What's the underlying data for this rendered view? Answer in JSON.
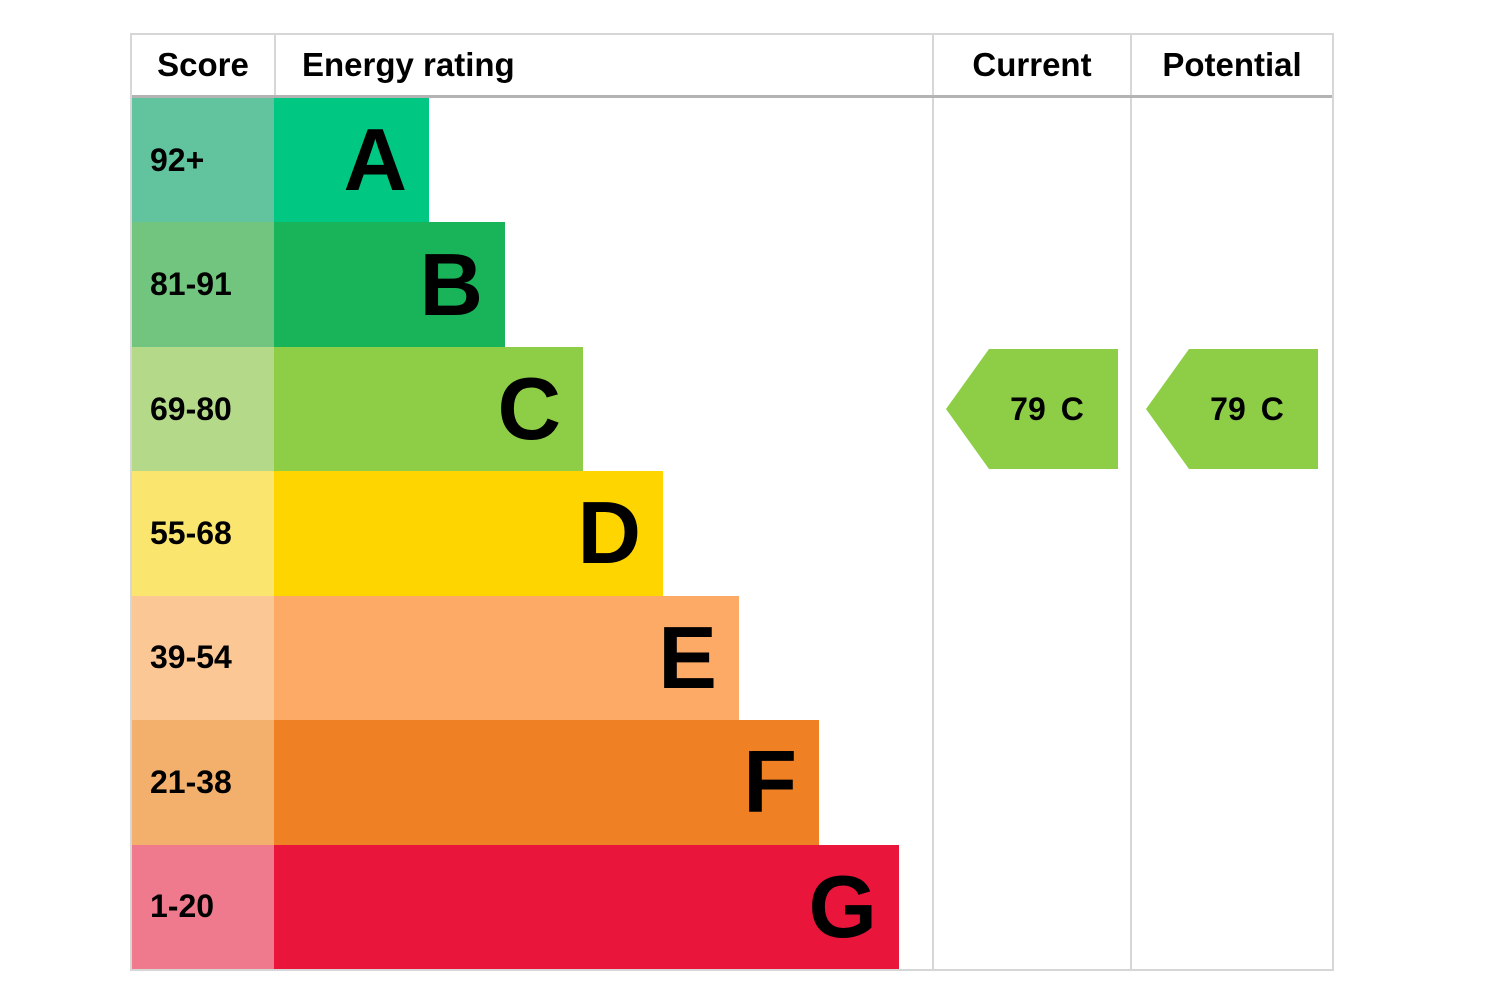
{
  "header": {
    "score": "Score",
    "energy_rating": "Energy rating",
    "current": "Current",
    "potential": "Potential"
  },
  "chart_data": {
    "type": "bar",
    "subtype": "epc-energy-rating-chart",
    "title": "",
    "columns": [
      "Score",
      "Energy rating",
      "Current",
      "Potential"
    ],
    "bands": [
      {
        "letter": "A",
        "score_range": "92+",
        "bar_color": "#00c781",
        "score_cell_color": "#61c49e"
      },
      {
        "letter": "B",
        "score_range": "81-91",
        "bar_color": "#19b459",
        "score_cell_color": "#72c57e"
      },
      {
        "letter": "C",
        "score_range": "69-80",
        "bar_color": "#8dce46",
        "score_cell_color": "#b3d989"
      },
      {
        "letter": "D",
        "score_range": "55-68",
        "bar_color": "#ffd500",
        "score_cell_color": "#fae66e"
      },
      {
        "letter": "E",
        "score_range": "39-54",
        "bar_color": "#fcaa65",
        "score_cell_color": "#fbc795"
      },
      {
        "letter": "F",
        "score_range": "21-38",
        "bar_color": "#ef8023",
        "score_cell_color": "#f3b06c"
      },
      {
        "letter": "G",
        "score_range": "1-20",
        "bar_color": "#e9153b",
        "score_cell_color": "#ef7a8e"
      }
    ],
    "current": {
      "value": "79",
      "band": "C",
      "arrow_color": "#8dce46",
      "arrow_direction": "left"
    },
    "potential": {
      "value": "79",
      "band": "C",
      "arrow_color": "#8dce46",
      "arrow_direction": "left"
    },
    "layout": {
      "grid": false,
      "border_color": "#d6d6d6",
      "header_separator_color": "#b3b3b3"
    }
  }
}
